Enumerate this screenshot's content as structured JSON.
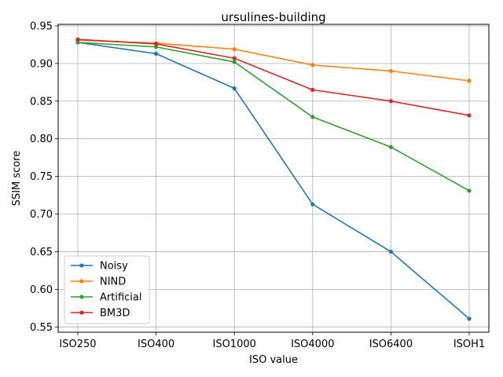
{
  "chart_data": {
    "type": "line",
    "title": "ursulines-building",
    "xlabel": "ISO value",
    "ylabel": "SSIM score",
    "categories": [
      "ISO250",
      "ISO400",
      "ISO1000",
      "ISO4000",
      "ISO6400",
      "ISOH1"
    ],
    "ylim": [
      0.543,
      0.952
    ],
    "yticks": [
      0.55,
      0.6,
      0.65,
      0.7,
      0.75,
      0.8,
      0.85,
      0.9,
      0.95
    ],
    "ytick_labels": [
      "0.55",
      "0.60",
      "0.65",
      "0.70",
      "0.75",
      "0.80",
      "0.85",
      "0.90",
      "0.95"
    ],
    "grid": true,
    "legend_position": "lower-left",
    "series": [
      {
        "name": "Noisy",
        "color": "#1f77b4",
        "values": [
          0.928,
          0.913,
          0.867,
          0.713,
          0.65,
          0.561
        ]
      },
      {
        "name": "NIND",
        "color": "#ff7f0e",
        "values": [
          0.931,
          0.927,
          0.919,
          0.898,
          0.89,
          0.877
        ]
      },
      {
        "name": "Artificial",
        "color": "#2ca02c",
        "values": [
          0.928,
          0.922,
          0.902,
          0.829,
          0.789,
          0.731
        ]
      },
      {
        "name": "BM3D",
        "color": "#d62728",
        "values": [
          0.932,
          0.926,
          0.907,
          0.865,
          0.85,
          0.831
        ]
      }
    ]
  }
}
